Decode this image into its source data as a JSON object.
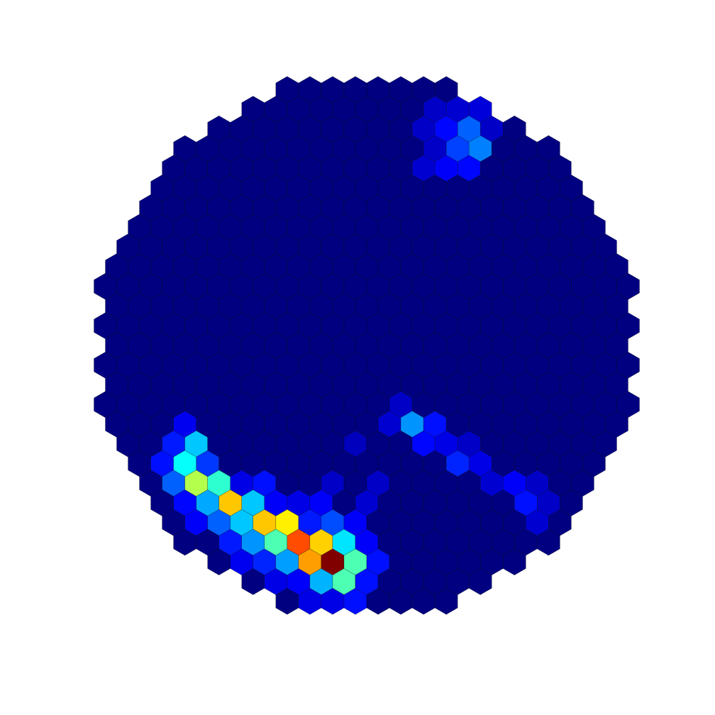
{
  "chart_data": {
    "type": "heatmap",
    "grid": "hexagonal",
    "colormap": "jet",
    "background_value": 0.0,
    "hot_pixels": [
      {
        "q": 9,
        "r": -9,
        "value": 0.13
      },
      {
        "q": 10,
        "r": -10,
        "value": 0.25
      },
      {
        "q": 9,
        "r": -10,
        "value": 0.19
      },
      {
        "q": 10,
        "r": -11,
        "value": 0.22
      },
      {
        "q": 9,
        "r": -11,
        "value": 0.13
      },
      {
        "q": 8,
        "r": -11,
        "value": 0.07
      },
      {
        "q": 8,
        "r": -10,
        "value": 0.07
      },
      {
        "q": 7,
        "r": -9,
        "value": 0.08
      },
      {
        "q": 8,
        "r": -9,
        "value": 0.12
      },
      {
        "q": 10,
        "r": -12,
        "value": 0.08
      },
      {
        "q": 9,
        "r": -12,
        "value": 0.07
      },
      {
        "q": 11,
        "r": -11,
        "value": 0.07
      },
      {
        "q": 11,
        "r": -12,
        "value": 0.09
      },
      {
        "q": -10,
        "r": 5,
        "value": 0.32
      },
      {
        "q": -11,
        "r": 5,
        "value": 0.15
      },
      {
        "q": -10,
        "r": 4,
        "value": 0.11
      },
      {
        "q": -11,
        "r": 6,
        "value": 0.38
      },
      {
        "q": -12,
        "r": 6,
        "value": 0.14
      },
      {
        "q": -12,
        "r": 7,
        "value": 0.22
      },
      {
        "q": -10,
        "r": 6,
        "value": 0.18
      },
      {
        "q": -11,
        "r": 7,
        "value": 0.55
      },
      {
        "q": -10,
        "r": 7,
        "value": 0.42
      },
      {
        "q": -12,
        "r": 8,
        "value": 0.13
      },
      {
        "q": -11,
        "r": 8,
        "value": 0.29
      },
      {
        "q": -10,
        "r": 8,
        "value": 0.68
      },
      {
        "q": -9,
        "r": 7,
        "value": 0.1
      },
      {
        "q": -9,
        "r": 8,
        "value": 0.32
      },
      {
        "q": -8,
        "r": 7,
        "value": 0.14
      },
      {
        "q": -12,
        "r": 9,
        "value": 0.12
      },
      {
        "q": -11,
        "r": 9,
        "value": 0.22
      },
      {
        "q": -10,
        "r": 9,
        "value": 0.32
      },
      {
        "q": -9,
        "r": 9,
        "value": 0.68
      },
      {
        "q": -8,
        "r": 9,
        "value": 0.64
      },
      {
        "q": -8,
        "r": 8,
        "value": 0.12
      },
      {
        "q": -7,
        "r": 8,
        "value": 0.1
      },
      {
        "q": -11,
        "r": 10,
        "value": 0.15
      },
      {
        "q": -10,
        "r": 10,
        "value": 0.27
      },
      {
        "q": -9,
        "r": 10,
        "value": 0.45
      },
      {
        "q": -8,
        "r": 10,
        "value": 0.8
      },
      {
        "q": -7,
        "r": 10,
        "value": 0.67
      },
      {
        "q": -6,
        "r": 9,
        "value": 0.2
      },
      {
        "q": -6,
        "r": 8,
        "value": 0.12
      },
      {
        "q": -7,
        "r": 9,
        "value": 0.15
      },
      {
        "q": -11,
        "r": 11,
        "value": 0.11
      },
      {
        "q": -10,
        "r": 11,
        "value": 0.16
      },
      {
        "q": -9,
        "r": 11,
        "value": 0.28
      },
      {
        "q": -8,
        "r": 11,
        "value": 0.72
      },
      {
        "q": -7,
        "r": 11,
        "value": 1.0
      },
      {
        "q": -6,
        "r": 10,
        "value": 0.35
      },
      {
        "q": -5,
        "r": 9,
        "value": 0.12
      },
      {
        "q": -10,
        "r": 12,
        "value": 0.1
      },
      {
        "q": -9,
        "r": 12,
        "value": 0.12
      },
      {
        "q": -8,
        "r": 12,
        "value": 0.3
      },
      {
        "q": -7,
        "r": 12,
        "value": 0.45
      },
      {
        "q": -6,
        "r": 11,
        "value": 0.45
      },
      {
        "q": -5,
        "r": 10,
        "value": 0.12
      },
      {
        "q": -9,
        "r": 13,
        "value": 0.1
      },
      {
        "q": -8,
        "r": 13,
        "value": 0.1
      },
      {
        "q": -7,
        "r": 13,
        "value": 0.14
      },
      {
        "q": -6,
        "r": 12,
        "value": 0.14
      },
      {
        "q": -5,
        "r": 11,
        "value": 0.14
      },
      {
        "q": -10,
        "r": 14,
        "value": 0.13
      },
      {
        "q": -9,
        "r": 14,
        "value": 0.08
      },
      {
        "q": -1,
        "r": 4,
        "value": 0.08
      },
      {
        "q": 0,
        "r": 3,
        "value": 0.07
      },
      {
        "q": 0,
        "r": 4,
        "value": 0.27
      },
      {
        "q": 1,
        "r": 4,
        "value": 0.14
      },
      {
        "q": 0,
        "r": 5,
        "value": 0.13
      },
      {
        "q": 1,
        "r": 5,
        "value": 0.1
      },
      {
        "q": 1,
        "r": 6,
        "value": 0.16
      },
      {
        "q": 2,
        "r": 5,
        "value": 0.07
      },
      {
        "q": 2,
        "r": 6,
        "value": 0.1
      },
      {
        "q": 2,
        "r": 7,
        "value": 0.08
      },
      {
        "q": 3,
        "r": 7,
        "value": 0.12
      },
      {
        "q": 4,
        "r": 7,
        "value": 0.07
      },
      {
        "q": 3,
        "r": 8,
        "value": 0.14
      },
      {
        "q": 4,
        "r": 8,
        "value": 0.07
      },
      {
        "q": 3,
        "r": 9,
        "value": 0.08
      },
      {
        "q": -3,
        "r": 7,
        "value": 0.07
      },
      {
        "q": -4,
        "r": 8,
        "value": 0.08
      },
      {
        "q": -5,
        "r": 7,
        "value": 0.07
      },
      {
        "q": -3,
        "r": 5,
        "value": 0.06
      }
    ]
  }
}
